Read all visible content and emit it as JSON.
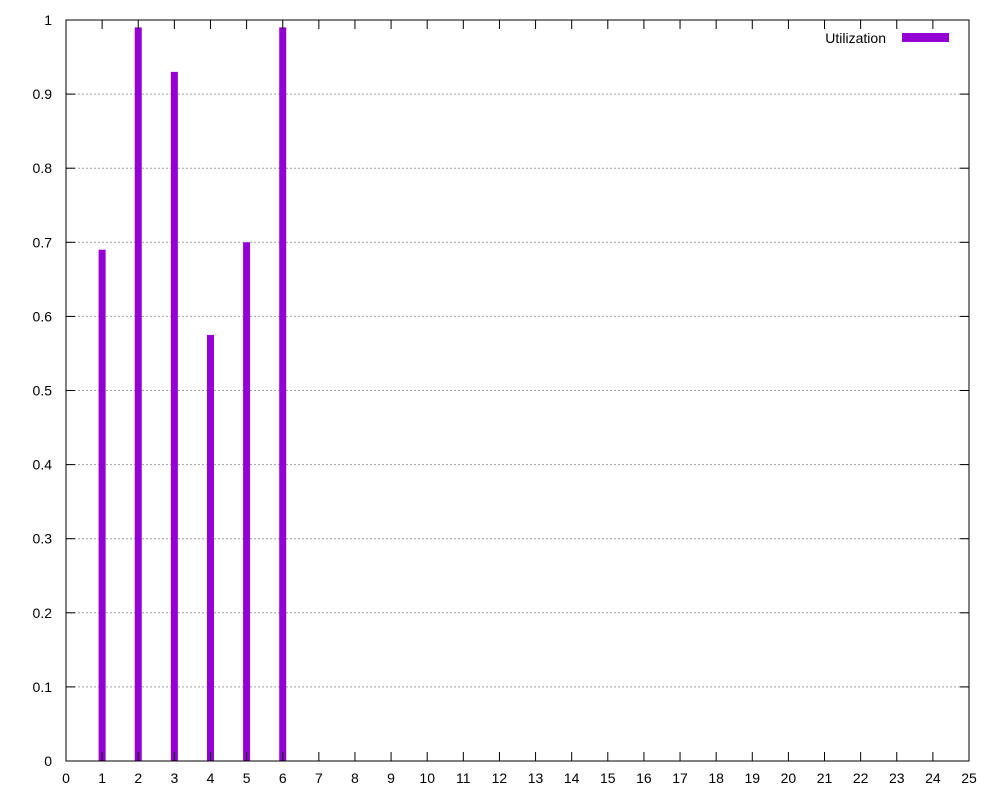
{
  "chart_data": {
    "type": "bar",
    "title": "",
    "xlabel": "",
    "ylabel": "",
    "xlim": [
      0,
      25
    ],
    "ylim": [
      0,
      1
    ],
    "xticks": [
      "0",
      "1",
      "2",
      "3",
      "4",
      "5",
      "6",
      "7",
      "8",
      "9",
      "10",
      "11",
      "12",
      "13",
      "14",
      "15",
      "16",
      "17",
      "18",
      "19",
      "20",
      "21",
      "22",
      "23",
      "24",
      "25"
    ],
    "yticks": [
      "0",
      "0.1",
      "0.2",
      "0.3",
      "0.4",
      "0.5",
      "0.6",
      "0.7",
      "0.8",
      "0.9",
      "1"
    ],
    "grid": true,
    "legend_position": "top-right",
    "series": [
      {
        "name": "Utilization",
        "color": "#9400d3",
        "points": [
          {
            "x": 1,
            "y": 0.69
          },
          {
            "x": 2,
            "y": 0.99
          },
          {
            "x": 3,
            "y": 0.93
          },
          {
            "x": 4,
            "y": 0.575
          },
          {
            "x": 5,
            "y": 0.7
          },
          {
            "x": 6,
            "y": 0.99
          }
        ]
      }
    ]
  }
}
